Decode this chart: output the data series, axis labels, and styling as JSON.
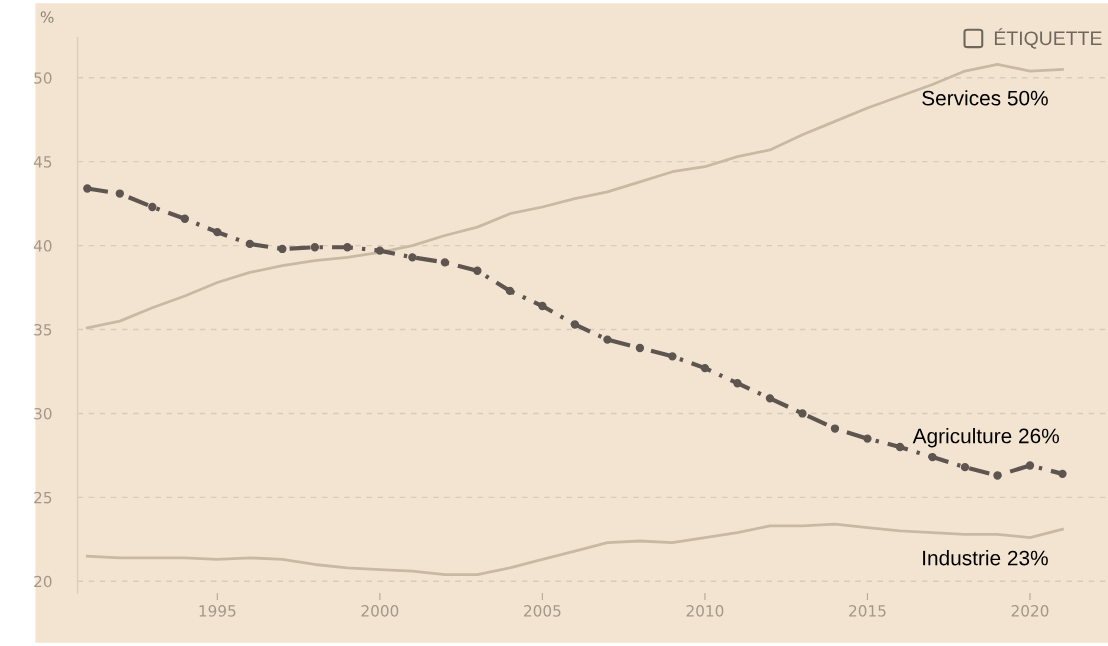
{
  "chart_data": {
    "type": "line",
    "ylabel": "%",
    "x": [
      1991,
      1992,
      1993,
      1994,
      1995,
      1996,
      1997,
      1998,
      1999,
      2000,
      2001,
      2002,
      2003,
      2004,
      2005,
      2006,
      2007,
      2008,
      2009,
      2010,
      2011,
      2012,
      2013,
      2014,
      2015,
      2016,
      2017,
      2018,
      2019,
      2020,
      2021
    ],
    "series": [
      {
        "name": "Services 50%",
        "color": "#c9b9a3",
        "line_style": "solid",
        "marker": "none",
        "values": [
          35.1,
          35.5,
          36.3,
          37.0,
          37.8,
          38.4,
          38.8,
          39.1,
          39.3,
          39.6,
          40.0,
          40.6,
          41.1,
          41.9,
          42.3,
          42.8,
          43.2,
          43.8,
          44.4,
          44.7,
          45.3,
          45.7,
          46.6,
          47.4,
          48.2,
          48.9,
          49.6,
          50.4,
          50.8,
          50.4,
          50.5
        ]
      },
      {
        "name": "Agriculture 26%",
        "color": "#5e5550",
        "line_style": "dashdot",
        "marker": "circle",
        "values": [
          43.4,
          43.1,
          42.3,
          41.6,
          40.8,
          40.1,
          39.8,
          39.9,
          39.9,
          39.7,
          39.3,
          39.0,
          38.5,
          37.3,
          36.4,
          35.3,
          34.4,
          33.9,
          33.4,
          32.7,
          31.8,
          30.9,
          30.0,
          29.1,
          28.5,
          28.0,
          27.4,
          26.8,
          26.3,
          26.9,
          26.4
        ]
      },
      {
        "name": "Industrie 23%",
        "color": "#c9b9a3",
        "line_style": "solid",
        "marker": "none",
        "values": [
          21.5,
          21.4,
          21.4,
          21.4,
          21.3,
          21.4,
          21.3,
          21.0,
          20.8,
          20.7,
          20.6,
          20.4,
          20.4,
          20.8,
          21.3,
          21.8,
          22.3,
          22.4,
          22.3,
          22.6,
          22.9,
          23.3,
          23.3,
          23.4,
          23.2,
          23.0,
          22.9,
          22.8,
          22.8,
          22.6,
          23.1
        ]
      }
    ],
    "xlim": [
      1990.7,
      2022.4
    ],
    "ylim": [
      19.3,
      52.4
    ],
    "xticks": [
      1995,
      2000,
      2005,
      2010,
      2015,
      2020
    ],
    "yticks": [
      20,
      25,
      30,
      35,
      40,
      45,
      50
    ],
    "grid": "y",
    "annotations": [
      "ÉTIQUETTE"
    ]
  }
}
